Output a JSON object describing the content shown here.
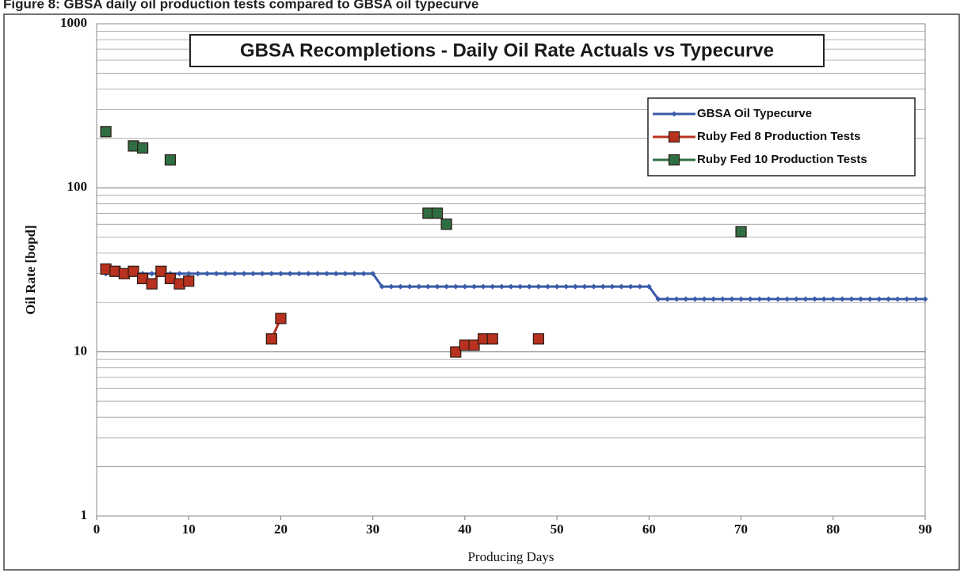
{
  "chart_data": {
    "type": "line",
    "caption": "Figure 8: GBSA daily oil production tests compared to GBSA oil typecurve",
    "title": "GBSA Recompletions - Daily Oil Rate Actuals vs Typecurve",
    "x_label": "Producing Days",
    "y_label": "Oil Rate [bopd]",
    "xlim": [
      0,
      90
    ],
    "xticks": [
      0,
      10,
      20,
      30,
      40,
      50,
      60,
      70,
      80,
      90
    ],
    "ylim": [
      1,
      1000
    ],
    "yticks": [
      1,
      10,
      100,
      1000
    ],
    "y_scale": "log",
    "grid": true,
    "legend": "upper right",
    "series": [
      {
        "name": "GBSA Oil Typecurve",
        "color": "#3a5ba8",
        "marker": "diamond",
        "x": [
          1,
          2,
          3,
          4,
          5,
          6,
          7,
          8,
          9,
          10,
          11,
          12,
          13,
          14,
          15,
          16,
          17,
          18,
          19,
          20,
          21,
          22,
          23,
          24,
          25,
          26,
          27,
          28,
          29,
          30,
          31,
          32,
          33,
          34,
          35,
          36,
          37,
          38,
          39,
          40,
          41,
          42,
          43,
          44,
          45,
          46,
          47,
          48,
          49,
          50,
          51,
          52,
          53,
          54,
          55,
          56,
          57,
          58,
          59,
          60,
          61,
          62,
          63,
          64,
          65,
          66,
          67,
          68,
          69,
          70,
          71,
          72,
          73,
          74,
          75,
          76,
          77,
          78,
          79,
          80,
          81,
          82,
          83,
          84,
          85,
          86,
          87,
          88,
          89,
          90
        ],
        "values": [
          30,
          30,
          30,
          30,
          30,
          30,
          30,
          30,
          30,
          30,
          30,
          30,
          30,
          30,
          30,
          30,
          30,
          30,
          30,
          30,
          30,
          30,
          30,
          30,
          30,
          30,
          30,
          30,
          30,
          30,
          25,
          25,
          25,
          25,
          25,
          25,
          25,
          25,
          25,
          25,
          25,
          25,
          25,
          25,
          25,
          25,
          25,
          25,
          25,
          25,
          25,
          25,
          25,
          25,
          25,
          25,
          25,
          25,
          25,
          25,
          21,
          21,
          21,
          21,
          21,
          21,
          21,
          21,
          21,
          21,
          21,
          21,
          21,
          21,
          21,
          21,
          21,
          21,
          21,
          21,
          21,
          21,
          21,
          21,
          21,
          21,
          21,
          21,
          21,
          21
        ]
      },
      {
        "name": "Ruby Fed 8 Production Tests",
        "color": "#b8321f",
        "marker": "square",
        "x": [
          1,
          2,
          3,
          4,
          5,
          6,
          7,
          8,
          9,
          10,
          19,
          20,
          39,
          40,
          41,
          42,
          43,
          48
        ],
        "values": [
          32,
          31,
          30,
          31,
          28,
          26,
          31,
          28,
          26,
          27,
          12,
          16,
          10,
          11,
          11,
          12,
          12,
          12
        ]
      },
      {
        "name": "Ruby Fed 10 Production Tests",
        "color": "#2f6e43",
        "marker": "square",
        "x": [
          1,
          4,
          5,
          8,
          36,
          37,
          38,
          70
        ],
        "values": [
          220,
          180,
          175,
          148,
          70,
          70,
          60,
          54
        ]
      }
    ]
  }
}
